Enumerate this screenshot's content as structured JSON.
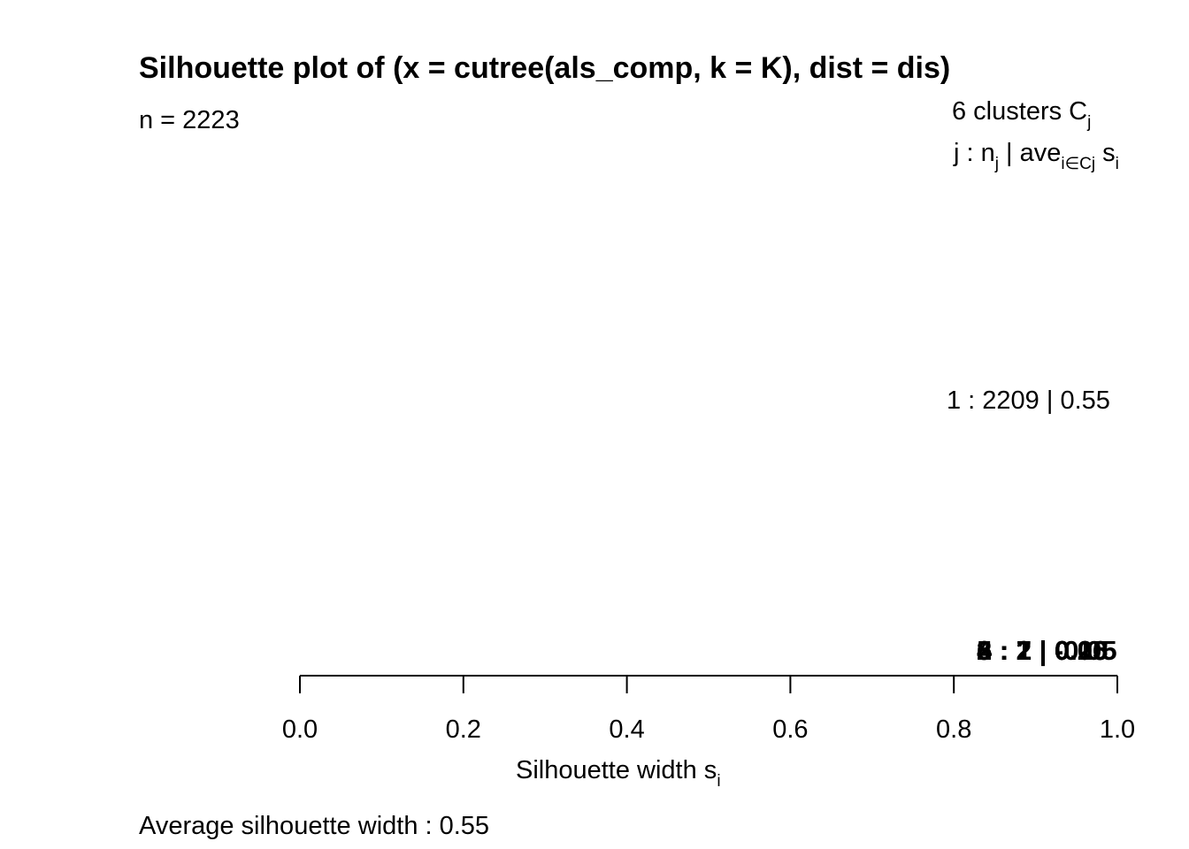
{
  "title": "Silhouette plot of (x = cutree(als_comp, k = K), dist = dis)",
  "n_label": "n = 2223",
  "header": {
    "clusters_main": "6  clusters  C",
    "clusters_sub": "j",
    "legend_j": "j :  n",
    "legend_j_sub": "j",
    "legend_ave": " | ave",
    "legend_ave_sub": "i∈Cj",
    "legend_s": "  s",
    "legend_s_sub": "i"
  },
  "cluster_label_1": "1 :   2209  |  0.55",
  "overlapping_labels": [
    "3 :   2  |  0.15",
    "6 :   2  |  -0.05",
    "4 :   1  |  0.00",
    "2 :   7  |  0.26",
    "5 :   2  |  0.05"
  ],
  "xlabel_main": "Silhouette width s",
  "xlabel_sub": "i",
  "avg_label": "Average silhouette width :  0.55",
  "chart_data": {
    "type": "bar",
    "title": "Silhouette plot of (x = cutree(als_comp, k = K), dist = dis)",
    "xlabel": "Silhouette width si",
    "xlim": [
      0,
      1
    ],
    "ticks": [
      0.0,
      0.2,
      0.4,
      0.6,
      0.8,
      1.0
    ],
    "tick_labels": [
      "0.0",
      "0.2",
      "0.4",
      "0.6",
      "0.8",
      "1.0"
    ],
    "n": 2223,
    "clusters": [
      {
        "j": 1,
        "n": 2209,
        "ave": 0.55
      },
      {
        "j": 2,
        "n": 7,
        "ave": 0.26
      },
      {
        "j": 3,
        "n": 2,
        "ave": 0.15
      },
      {
        "j": 4,
        "n": 1,
        "ave": 0.0
      },
      {
        "j": 5,
        "n": 2,
        "ave": 0.05
      },
      {
        "j": 6,
        "n": 2,
        "ave": -0.05
      }
    ],
    "average_silhouette_width": 0.55
  }
}
